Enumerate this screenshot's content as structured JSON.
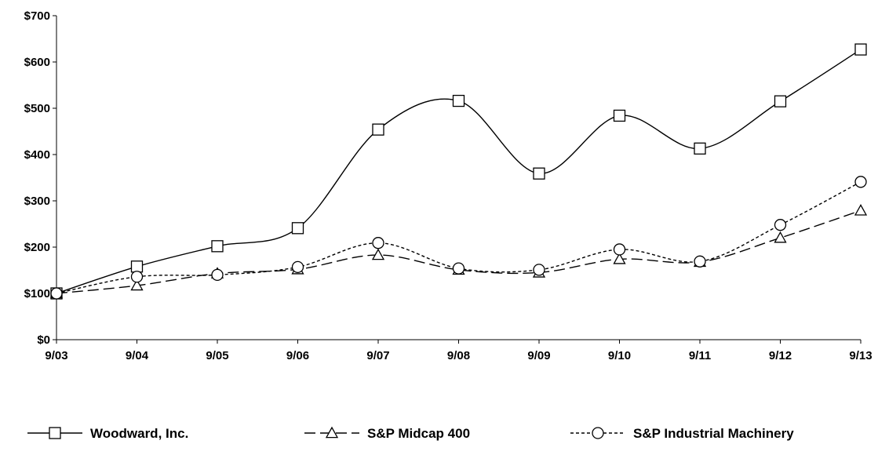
{
  "chart_data": {
    "type": "line",
    "categories": [
      "9/03",
      "9/04",
      "9/05",
      "9/06",
      "9/07",
      "9/08",
      "9/09",
      "9/10",
      "9/11",
      "9/12",
      "9/13"
    ],
    "series": [
      {
        "name": "Woodward, Inc.",
        "values": [
          100,
          158,
          202,
          241,
          454,
          516,
          359,
          484,
          413,
          515,
          627
        ],
        "marker": "square",
        "dash": "solid",
        "smooth": true
      },
      {
        "name": "S&P Midcap 400",
        "values": [
          100,
          117,
          143,
          152,
          183,
          151,
          145,
          174,
          168,
          220,
          279
        ],
        "marker": "triangle",
        "dash": "long-dash",
        "smooth": true
      },
      {
        "name": "S&P Industrial Machinery",
        "values": [
          100,
          136,
          140,
          157,
          209,
          154,
          151,
          195,
          169,
          248,
          341
        ],
        "marker": "circle",
        "dash": "short-dash",
        "smooth": true
      }
    ],
    "y_ticks": [
      "$0",
      "$100",
      "$200",
      "$300",
      "$400",
      "$500",
      "$600",
      "$700"
    ],
    "ylim": [
      0,
      700
    ],
    "title": "",
    "xlabel": "",
    "ylabel": "",
    "grid": false,
    "legend_position": "bottom",
    "line_color": "#000000"
  }
}
